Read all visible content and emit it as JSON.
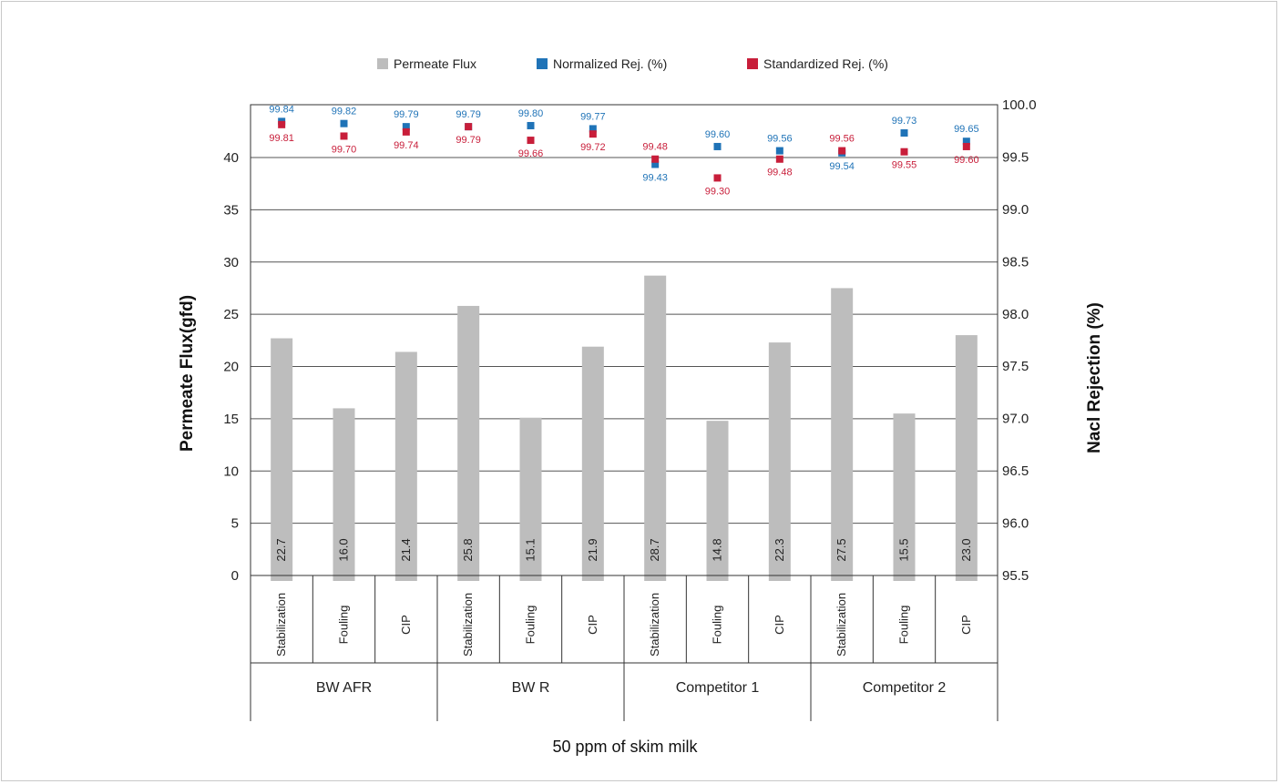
{
  "chart_data": {
    "type": "bar",
    "caption": "50 ppm of skim milk",
    "ylabel": "Permeate Flux(gfd)",
    "y2label": "Nacl Rejection (%)",
    "ylim": [
      0,
      45
    ],
    "y2lim": [
      95.5,
      100.0
    ],
    "y_ticks": [
      "0",
      "5",
      "10",
      "15",
      "20",
      "25",
      "30",
      "35",
      "40"
    ],
    "y2_ticks": [
      "95.5",
      "96.0",
      "96.5",
      "97.0",
      "97.5",
      "98.0",
      "98.5",
      "99.0",
      "99.5",
      "100.0"
    ],
    "legend": {
      "position": "top",
      "items": [
        {
          "label": "Permeate  Flux",
          "color": "#bdbdbd"
        },
        {
          "label": "Normalized  Rej.  (%)",
          "color": "#1f73b7"
        },
        {
          "label": "Standardized  Rej.  (%)",
          "color": "#c81e3a"
        }
      ]
    },
    "grid": true,
    "groups": [
      {
        "name": "BW AFR",
        "categories": [
          "Stabilization",
          "Fouling",
          "CIP"
        ]
      },
      {
        "name": "BW R",
        "categories": [
          "Stabilization",
          "Fouling",
          "CIP"
        ]
      },
      {
        "name": "Competitor 1",
        "categories": [
          "Stabilization",
          "Fouling",
          "CIP"
        ]
      },
      {
        "name": "Competitor 2",
        "categories": [
          "Stabilization",
          "Fouling",
          "CIP"
        ]
      }
    ],
    "series": [
      {
        "name": "Permeate  Flux",
        "axis": "left",
        "kind": "bar",
        "color": "#bdbdbd",
        "values": [
          22.7,
          16.0,
          21.4,
          25.8,
          15.1,
          21.9,
          28.7,
          14.8,
          22.3,
          27.5,
          15.5,
          23.0
        ]
      },
      {
        "name": "Normalized  Rej.  (%)",
        "axis": "right",
        "kind": "marker",
        "color": "#1f73b7",
        "values": [
          99.84,
          99.82,
          99.79,
          99.79,
          99.8,
          99.77,
          99.43,
          99.6,
          99.56,
          99.54,
          99.73,
          99.65
        ]
      },
      {
        "name": "Standardized  Rej.  (%)",
        "axis": "right",
        "kind": "marker",
        "color": "#c81e3a",
        "values": [
          99.81,
          99.7,
          99.74,
          99.79,
          99.66,
          99.72,
          99.48,
          99.3,
          99.48,
          99.56,
          99.55,
          99.6
        ]
      }
    ]
  }
}
